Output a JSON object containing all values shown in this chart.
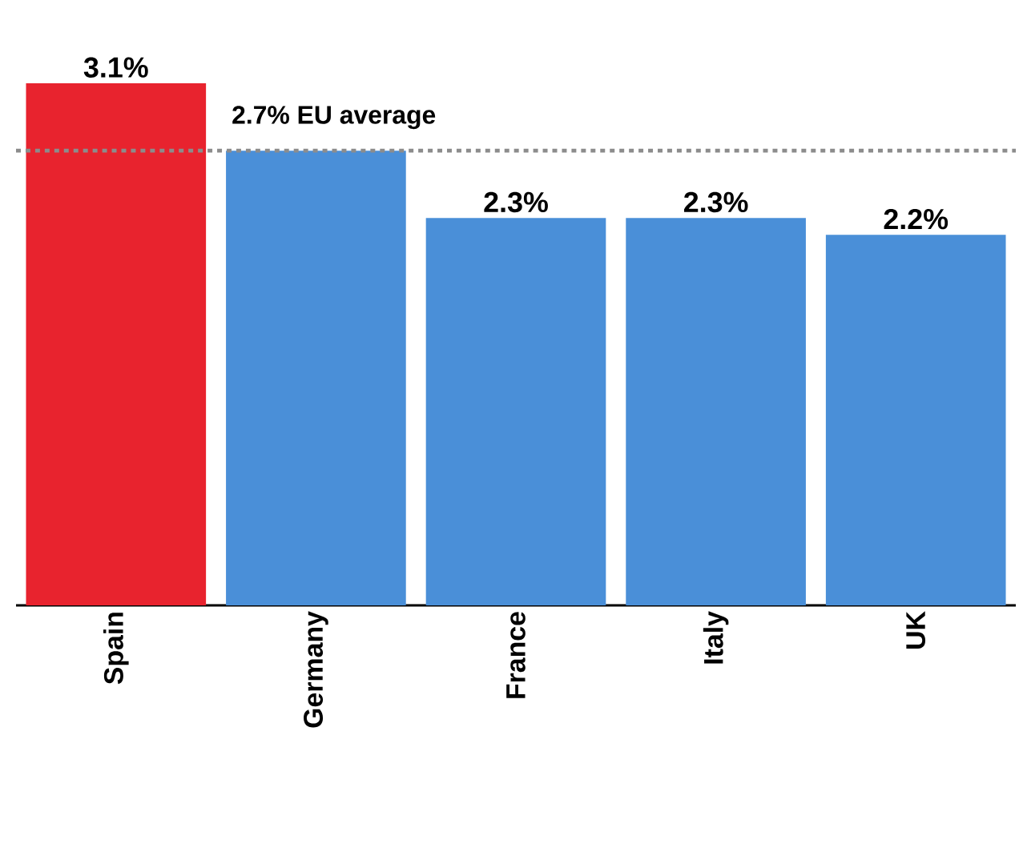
{
  "chart_data": {
    "type": "bar",
    "categories": [
      "Spain",
      "Germany",
      "France",
      "Italy",
      "UK"
    ],
    "values": [
      3.1,
      2.7,
      2.3,
      2.3,
      2.2
    ],
    "value_labels": [
      "3.1%",
      null,
      "2.3%",
      "2.3%",
      "2.2%"
    ],
    "colors": [
      "#e8232e",
      "#4a8fd8",
      "#4a8fd8",
      "#4a8fd8",
      "#4a8fd8"
    ],
    "ref_lines": [
      {
        "axis": "y",
        "value": 2.7,
        "label": "2.7% EU average",
        "color": "#8c8c8c",
        "line_style": "dashed"
      }
    ]
  }
}
